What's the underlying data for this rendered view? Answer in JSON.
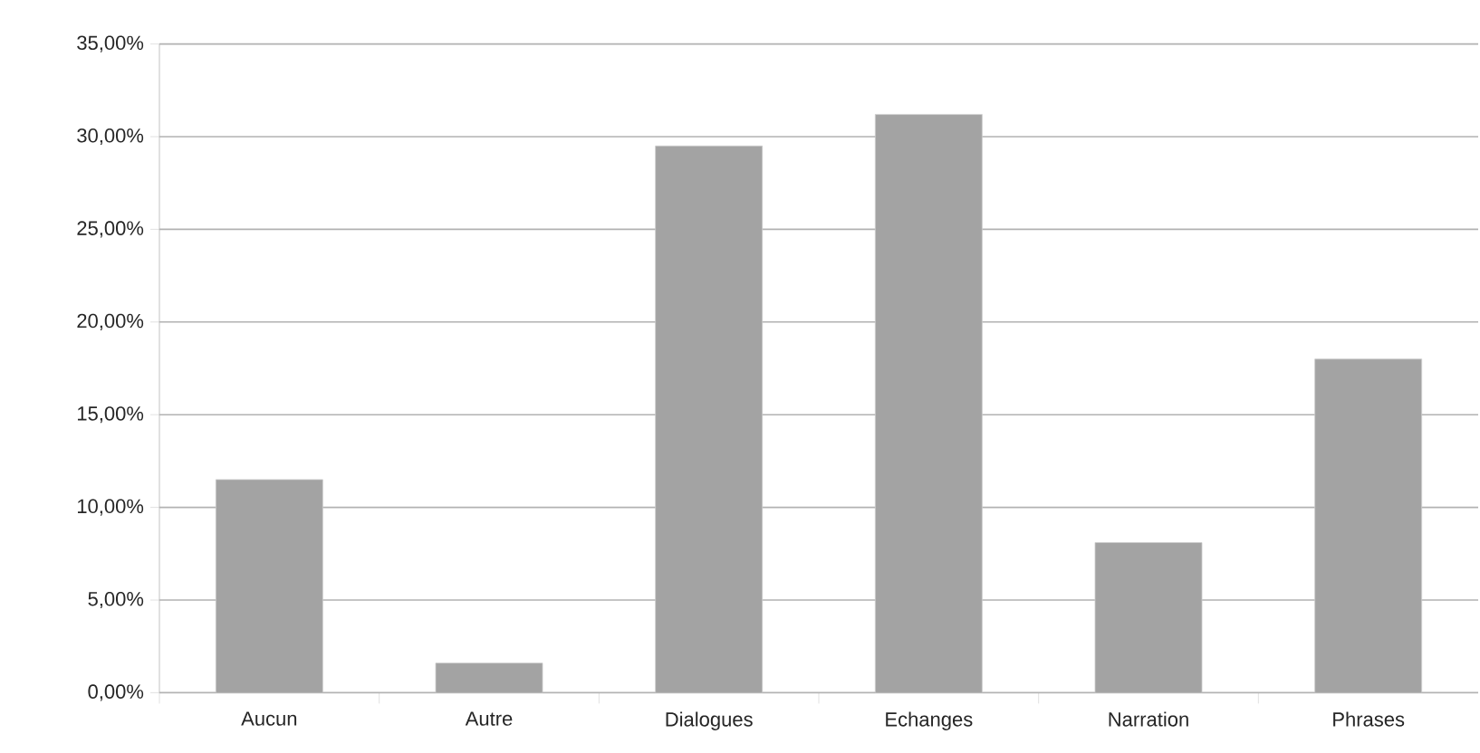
{
  "chart_data": {
    "type": "bar",
    "categories": [
      "Aucun",
      "Autre",
      "Dialogues",
      "Echanges",
      "Narration",
      "Phrases"
    ],
    "values": [
      11.5,
      1.6,
      29.5,
      31.2,
      8.1,
      18.0
    ],
    "color": "#a3a3a3",
    "ylim": [
      0,
      35
    ],
    "yticks": [
      {
        "value": 0,
        "label": "0,00%"
      },
      {
        "value": 5,
        "label": "5,00%"
      },
      {
        "value": 10,
        "label": "10,00%"
      },
      {
        "value": 15,
        "label": "15,00%"
      },
      {
        "value": 20,
        "label": "20,00%"
      },
      {
        "value": 25,
        "label": "25,00%"
      },
      {
        "value": 30,
        "label": "30,00%"
      },
      {
        "value": 35,
        "label": "35,00%"
      }
    ],
    "grid": "y"
  }
}
